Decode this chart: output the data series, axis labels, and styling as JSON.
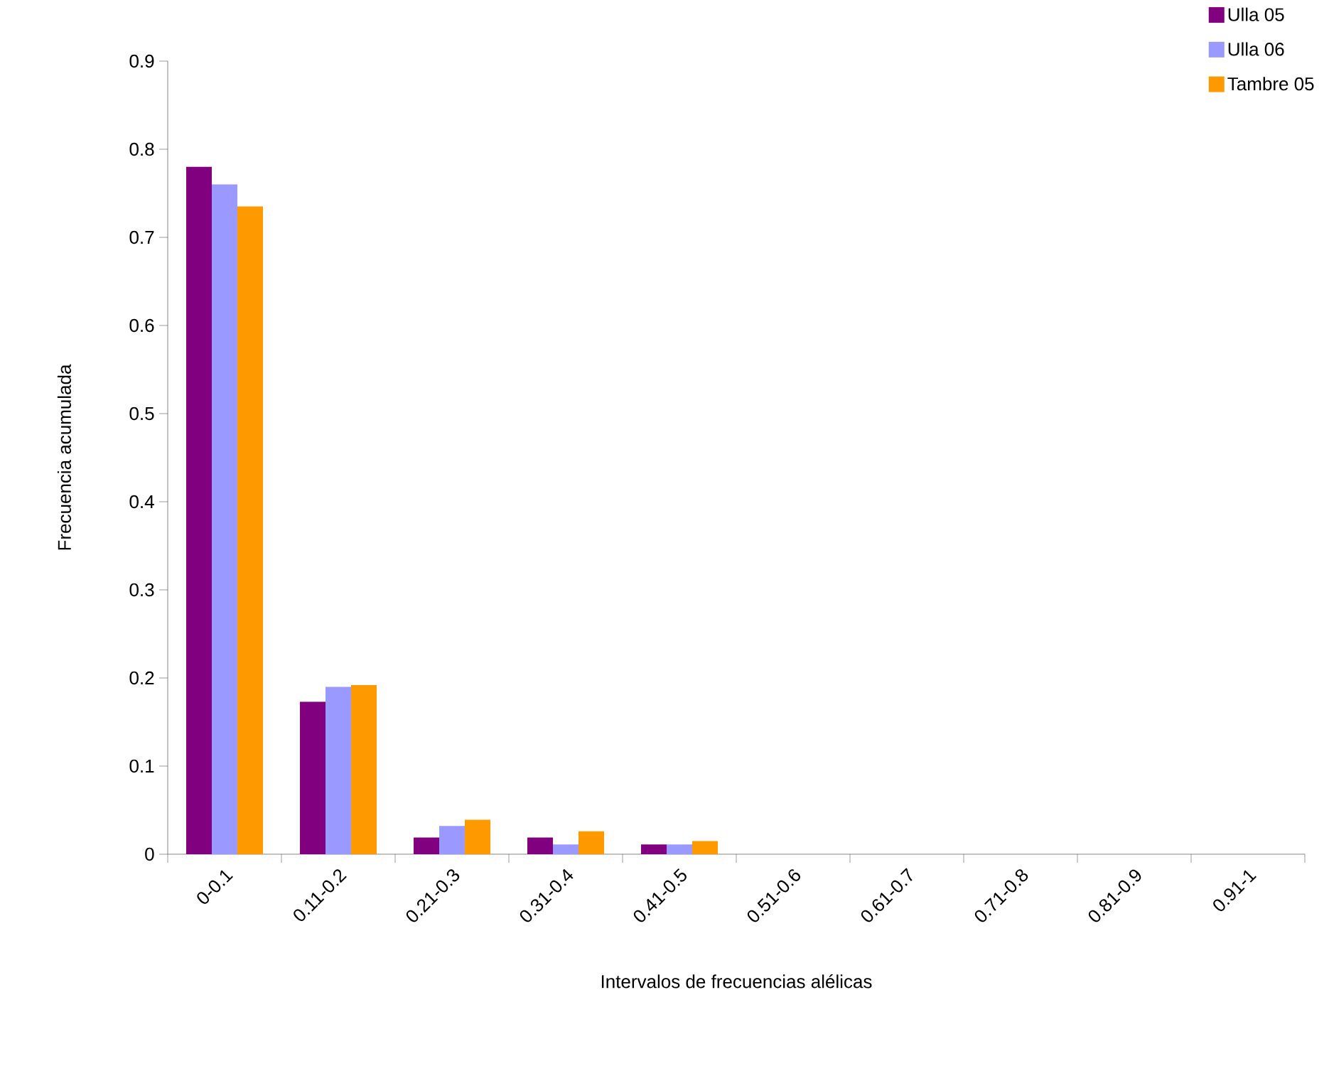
{
  "chart_data": {
    "type": "bar",
    "xlabel": "Intervalos de frecuencias alélicas",
    "ylabel": "Frecuencia acumulada",
    "categories": [
      "0-0.1",
      "0.11-0.2",
      "0.21-0.3",
      "0.31-0.4",
      "0.41-0.5",
      "0.51-0.6",
      "0.61-0.7",
      "0.71-0.8",
      "0.81-0.9",
      "0.91-1"
    ],
    "series": [
      {
        "name": "Ulla 05",
        "color": "#800080",
        "values": [
          0.78,
          0.173,
          0.019,
          0.019,
          0.011,
          0,
          0,
          0,
          0,
          0
        ]
      },
      {
        "name": "Ulla 06",
        "color": "#9999ff",
        "values": [
          0.76,
          0.19,
          0.032,
          0.011,
          0.011,
          0,
          0,
          0,
          0,
          0
        ]
      },
      {
        "name": "Tambre 05",
        "color": "#ff9900",
        "values": [
          0.735,
          0.192,
          0.039,
          0.026,
          0.015,
          0,
          0,
          0,
          0,
          0
        ]
      }
    ],
    "ylim": [
      0,
      0.9
    ],
    "yticks": [
      0,
      0.1,
      0.2,
      0.3,
      0.4,
      0.5,
      0.6,
      0.7,
      0.8,
      0.9
    ],
    "grid": false,
    "legend": "top right"
  }
}
